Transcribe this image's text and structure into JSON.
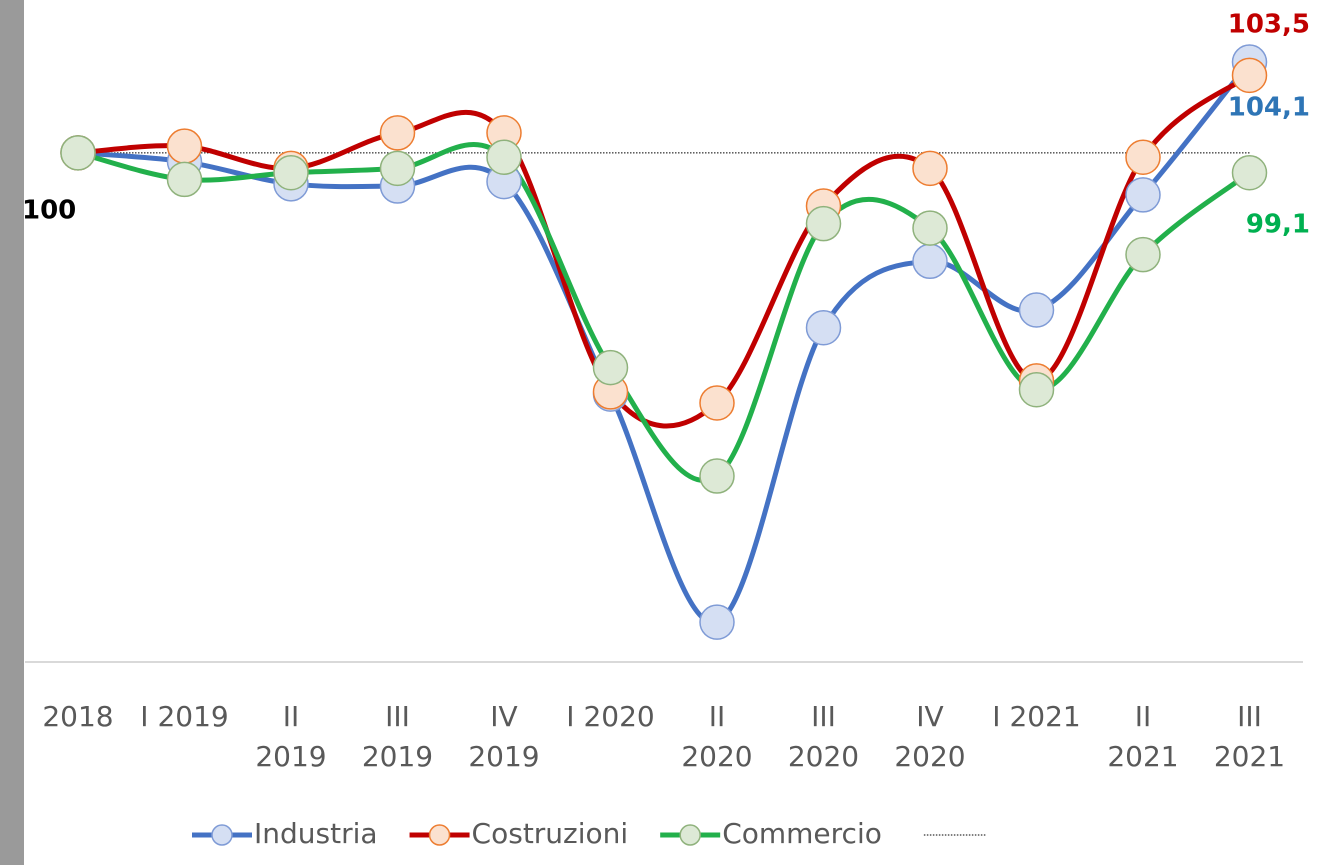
{
  "chart_data": {
    "type": "line",
    "categories": [
      "2018",
      "I 2019",
      "II\n2019",
      "III\n2019",
      "IV\n2019",
      "I 2020",
      "II\n2020",
      "III\n2020",
      "IV\n2020",
      "I 2021",
      "II\n2021",
      "III\n2021"
    ],
    "reference_value": 100,
    "ylim": [
      77,
      106
    ],
    "series": [
      {
        "name": "Industria",
        "color": "#4472c4",
        "marker_fill": "#d5dff3",
        "marker_stroke": "#7f9bd6",
        "label_color": "#2e75b6",
        "values": [
          100,
          99.6,
          98.6,
          98.5,
          98.7,
          89.1,
          78.8,
          92.1,
          95.1,
          92.9,
          98.1,
          104.1
        ],
        "value_labels": [
          null,
          null,
          null,
          null,
          null,
          null,
          null,
          null,
          null,
          null,
          null,
          "104,1"
        ]
      },
      {
        "name": "Costruzioni",
        "color": "#c00000",
        "marker_fill": "#fbe1cf",
        "marker_stroke": "#ed7d31",
        "label_color": "#c00000",
        "values": [
          100,
          100.3,
          99.3,
          100.9,
          100.9,
          89.2,
          88.7,
          97.6,
          99.3,
          89.7,
          99.8,
          103.5
        ],
        "value_labels": [
          null,
          null,
          null,
          null,
          null,
          null,
          null,
          null,
          null,
          null,
          null,
          "103,5"
        ]
      },
      {
        "name": "Commercio",
        "color": "#22b04b",
        "marker_fill": "#dde9d6",
        "marker_stroke": "#8fb27c",
        "label_color": "#00b050",
        "values": [
          100,
          98.8,
          99.1,
          99.3,
          99.8,
          90.3,
          85.4,
          96.8,
          96.6,
          89.3,
          95.4,
          99.1
        ],
        "value_labels": [
          null,
          null,
          null,
          null,
          null,
          null,
          null,
          null,
          null,
          null,
          null,
          "99,1"
        ]
      }
    ]
  }
}
